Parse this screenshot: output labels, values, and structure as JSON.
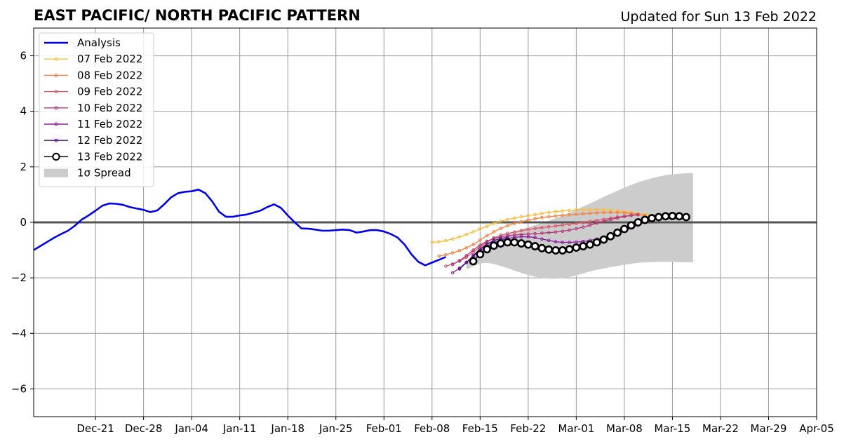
{
  "chart_data": {
    "type": "line",
    "title": "EAST PACIFIC/ NORTH PACIFIC PATTERN",
    "subtitle": "Updated for Sun 13 Feb 2022",
    "xlim": [
      "2021-12-12",
      "2022-04-05"
    ],
    "ylim": [
      -7,
      7
    ],
    "grid": true,
    "legend_position": "top-left",
    "x_ticks": [
      "Dec-21",
      "Dec-28",
      "Jan-04",
      "Jan-11",
      "Jan-18",
      "Jan-25",
      "Feb-01",
      "Feb-08",
      "Feb-15",
      "Feb-22",
      "Mar-01",
      "Mar-08",
      "Mar-15",
      "Mar-22",
      "Mar-29",
      "Apr-05"
    ],
    "x_tick_dates": [
      "2021-12-21",
      "2021-12-28",
      "2022-01-04",
      "2022-01-11",
      "2022-01-18",
      "2022-01-25",
      "2022-02-01",
      "2022-02-08",
      "2022-02-15",
      "2022-02-22",
      "2022-03-01",
      "2022-03-08",
      "2022-03-15",
      "2022-03-22",
      "2022-03-29",
      "2022-04-05"
    ],
    "y_ticks": [
      -6,
      -4,
      -2,
      0,
      2,
      4,
      6
    ],
    "y_tick_labels": [
      "−6",
      "−4",
      "−2",
      "0",
      "2",
      "4",
      "6"
    ],
    "analysis": {
      "name": "Analysis",
      "color": "#0000ee",
      "start": "2021-12-12",
      "values": [
        -1.0,
        -0.85,
        -0.7,
        -0.55,
        -0.42,
        -0.3,
        -0.12,
        0.1,
        0.25,
        0.42,
        0.6,
        0.68,
        0.67,
        0.63,
        0.55,
        0.5,
        0.45,
        0.37,
        0.43,
        0.65,
        0.9,
        1.05,
        1.1,
        1.12,
        1.18,
        1.05,
        0.75,
        0.38,
        0.2,
        0.2,
        0.25,
        0.28,
        0.35,
        0.42,
        0.55,
        0.65,
        0.52,
        0.25,
        0.0,
        -0.22,
        -0.23,
        -0.26,
        -0.3,
        -0.3,
        -0.28,
        -0.26,
        -0.28,
        -0.37,
        -0.33,
        -0.28,
        -0.28,
        -0.33,
        -0.42,
        -0.55,
        -0.8,
        -1.15,
        -1.42,
        -1.55,
        -1.45,
        -1.35,
        -1.25
      ]
    },
    "forecasts": [
      {
        "name": "07 Feb 2022",
        "color": "#fcbc3b",
        "start": "2022-02-08",
        "values": [
          -0.72,
          -0.7,
          -0.66,
          -0.6,
          -0.52,
          -0.44,
          -0.34,
          -0.24,
          -0.14,
          -0.04,
          0.04,
          0.1,
          0.15,
          0.2,
          0.24,
          0.28,
          0.32,
          0.36,
          0.39,
          0.41,
          0.43,
          0.45,
          0.46,
          0.47,
          0.47,
          0.46,
          0.44,
          0.42,
          0.39,
          0.36,
          0.32,
          0.28,
          0.24
        ]
      },
      {
        "name": "08 Feb 2022",
        "color": "#f4813e",
        "start": "2022-02-09",
        "values": [
          -1.22,
          -1.17,
          -1.1,
          -1.02,
          -0.92,
          -0.8,
          -0.64,
          -0.48,
          -0.34,
          -0.22,
          -0.12,
          -0.04,
          0.02,
          0.08,
          0.13,
          0.17,
          0.2,
          0.23,
          0.25,
          0.27,
          0.29,
          0.31,
          0.33,
          0.34,
          0.35,
          0.36,
          0.35,
          0.34,
          0.32,
          0.29,
          0.25
        ]
      },
      {
        "name": "09 Feb 2022",
        "color": "#e05565",
        "start": "2022-02-10",
        "values": [
          -1.58,
          -1.5,
          -1.4,
          -1.26,
          -1.08,
          -0.88,
          -0.7,
          -0.56,
          -0.46,
          -0.4,
          -0.35,
          -0.3,
          -0.26,
          -0.22,
          -0.19,
          -0.16,
          -0.13,
          -0.1,
          -0.07,
          -0.04,
          -0.01,
          0.03,
          0.07,
          0.11,
          0.15,
          0.19,
          0.22,
          0.25,
          0.27
        ]
      },
      {
        "name": "10 Feb 2022",
        "color": "#b4367a",
        "start": "2022-02-11",
        "values": [
          -1.52,
          -1.38,
          -1.2,
          -1.0,
          -0.82,
          -0.68,
          -0.58,
          -0.52,
          -0.48,
          -0.46,
          -0.44,
          -0.42,
          -0.41,
          -0.39,
          -0.37,
          -0.35,
          -0.32,
          -0.28,
          -0.23,
          -0.17,
          -0.1,
          -0.03,
          0.04,
          0.1,
          0.16,
          0.21,
          0.25,
          0.28
        ]
      },
      {
        "name": "11 Feb 2022",
        "color": "#8c1aa0",
        "start": "2022-02-11",
        "values": [
          -1.82,
          -1.65,
          -1.44,
          -1.22,
          -1.02,
          -0.86,
          -0.74,
          -0.65,
          -0.58,
          -0.54,
          -0.52,
          -0.52,
          -0.55,
          -0.6,
          -0.65,
          -0.7,
          -0.72,
          -0.72,
          -0.71,
          -0.69,
          -0.65,
          -0.6,
          -0.54,
          -0.47,
          -0.39,
          -0.3,
          -0.2,
          -0.1,
          0.0,
          0.08,
          0.14,
          0.18
        ]
      },
      {
        "name": "12 Feb 2022",
        "color": "#4a0e7e",
        "start": "2022-02-12",
        "values": [
          -1.68,
          -1.45,
          -1.2,
          -0.96,
          -0.78,
          -0.66,
          -0.58,
          -0.54
        ]
      }
    ],
    "forecast_13": {
      "name": "13 Feb 2022",
      "color": "#000000",
      "start": "2022-02-14",
      "values": [
        -1.4,
        -1.15,
        -0.97,
        -0.84,
        -0.76,
        -0.72,
        -0.72,
        -0.76,
        -0.8,
        -0.86,
        -0.93,
        -0.98,
        -1.01,
        -1.01,
        -0.97,
        -0.91,
        -0.86,
        -0.8,
        -0.72,
        -0.62,
        -0.5,
        -0.37,
        -0.24,
        -0.11,
        0.0,
        0.09,
        0.15,
        0.19,
        0.22,
        0.23,
        0.22,
        0.19
      ]
    },
    "spread": {
      "name": "1σ Spread",
      "color": "#cccccc",
      "start": "2022-02-13",
      "upper": [
        -1.45,
        -1.15,
        -0.9,
        -0.7,
        -0.58,
        -0.48,
        -0.4,
        -0.32,
        -0.25,
        -0.17,
        -0.1,
        -0.02,
        0.06,
        0.15,
        0.25,
        0.35,
        0.46,
        0.57,
        0.68,
        0.8,
        0.92,
        1.03,
        1.14,
        1.25,
        1.35,
        1.44,
        1.52,
        1.59,
        1.65,
        1.7,
        1.73,
        1.75,
        1.77,
        1.78
      ],
      "lower": [
        -1.7,
        -1.58,
        -1.48,
        -1.46,
        -1.5,
        -1.57,
        -1.65,
        -1.74,
        -1.82,
        -1.9,
        -1.96,
        -2.0,
        -2.03,
        -2.03,
        -2.01,
        -1.97,
        -1.91,
        -1.84,
        -1.77,
        -1.71,
        -1.66,
        -1.61,
        -1.57,
        -1.53,
        -1.49,
        -1.46,
        -1.44,
        -1.43,
        -1.42,
        -1.42,
        -1.42,
        -1.43,
        -1.44,
        -1.44
      ]
    },
    "legend": [
      "Analysis",
      "07 Feb 2022",
      "08 Feb 2022",
      "09 Feb 2022",
      "10 Feb 2022",
      "11 Feb 2022",
      "12 Feb 2022",
      "13 Feb 2022",
      "1σ Spread"
    ]
  }
}
